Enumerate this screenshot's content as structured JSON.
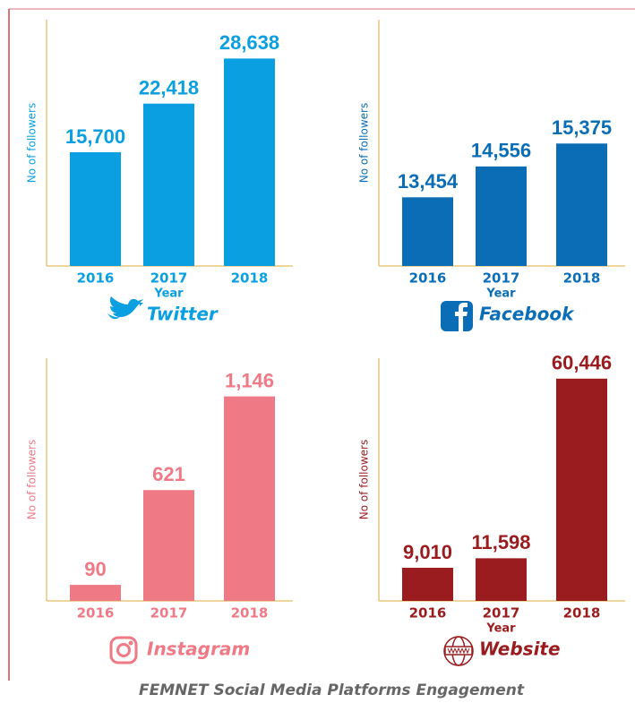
{
  "chart_data": [
    {
      "type": "bar",
      "title": "Twitter",
      "ylabel": "No of followers",
      "xlabel": "Year",
      "color": "#0a9fe0",
      "categories": [
        "2016",
        "2017",
        "2018"
      ],
      "values": [
        15700,
        22418,
        28638
      ],
      "value_labels": [
        "15,700",
        "22,418",
        "28,638"
      ],
      "ylim": [
        0,
        34000
      ]
    },
    {
      "type": "bar",
      "title": "Facebook",
      "ylabel": "No of followers",
      "xlabel": "Year",
      "color": "#0a6db5",
      "categories": [
        "2016",
        "2017",
        "2018"
      ],
      "values": [
        13454,
        14556,
        15375
      ],
      "value_labels": [
        "13,454",
        "14,556",
        "15,375"
      ],
      "ylim": [
        11000,
        19800
      ]
    },
    {
      "type": "bar",
      "title": "Instagram",
      "ylabel": "No of followers",
      "color": "#ef7a86",
      "categories": [
        "2016",
        "2017",
        "2018"
      ],
      "values": [
        90,
        621,
        1146
      ],
      "value_labels": [
        "90",
        "621",
        "1,146"
      ],
      "ylim": [
        0,
        1360
      ]
    },
    {
      "type": "bar",
      "title": "Website",
      "ylabel": "No of followers",
      "xlabel": "Year",
      "color": "#9b1c1f",
      "categories": [
        "2016",
        "2017",
        "2018"
      ],
      "values": [
        9010,
        11598,
        60446
      ],
      "value_labels": [
        "9,010",
        "11,598",
        "60,446"
      ],
      "ylim": [
        0,
        66000
      ]
    }
  ],
  "caption": "FEMNET Social Media Platforms Engagement"
}
